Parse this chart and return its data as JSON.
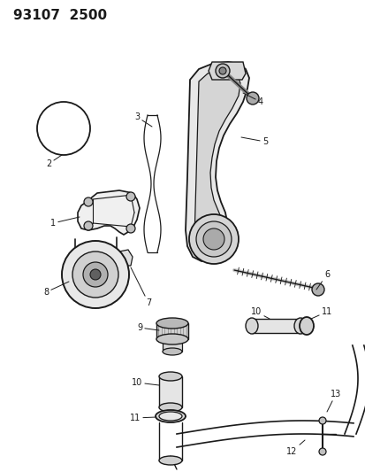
{
  "title": "93107  2500",
  "bg_color": "#ffffff",
  "line_color": "#1a1a1a",
  "fig_width": 4.14,
  "fig_height": 5.33,
  "dpi": 100
}
